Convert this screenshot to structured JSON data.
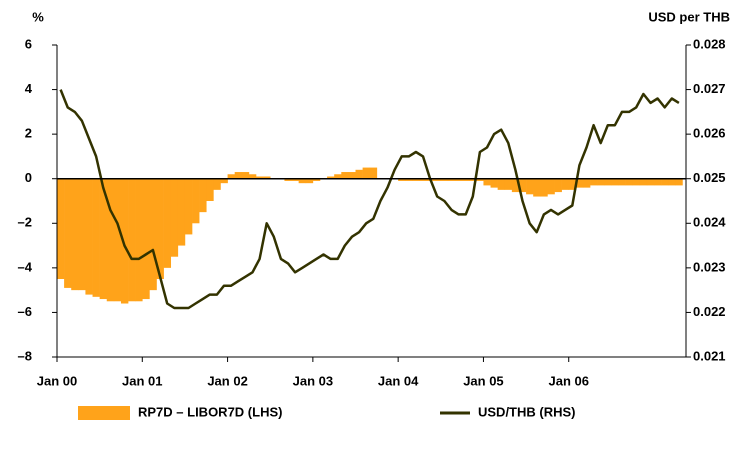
{
  "chart_data": {
    "type": "bar-line",
    "ylabel": "%",
    "y2label": "USD per THB",
    "categories": [
      "Jan 00",
      null,
      null,
      null,
      null,
      null,
      null,
      null,
      null,
      null,
      null,
      null,
      "Jan 01",
      null,
      null,
      null,
      null,
      null,
      null,
      null,
      null,
      null,
      null,
      null,
      "Jan 02",
      null,
      null,
      null,
      null,
      null,
      null,
      null,
      null,
      null,
      null,
      null,
      "Jan 03",
      null,
      null,
      null,
      null,
      null,
      null,
      null,
      null,
      null,
      null,
      null,
      "Jan 04",
      null,
      null,
      null,
      null,
      null,
      null,
      null,
      null,
      null,
      null,
      null,
      "Jan 05",
      null,
      null,
      null,
      null,
      null,
      null,
      null,
      null,
      null,
      null,
      null,
      "Jan 06",
      null,
      null,
      null,
      null,
      null,
      null,
      null,
      null,
      null,
      null,
      null,
      null,
      null,
      null,
      null
    ],
    "series": [
      {
        "name": "RP7D – LIBOR7D (LHS)",
        "color": "#ffa31a",
        "kind": "bar",
        "axis": "y",
        "values": [
          -4.5,
          -4.9,
          -5.0,
          -5.0,
          -5.2,
          -5.3,
          -5.4,
          -5.5,
          -5.5,
          -5.6,
          -5.5,
          -5.5,
          -5.4,
          -5.0,
          -4.5,
          -4.0,
          -3.5,
          -3.0,
          -2.5,
          -2.0,
          -1.5,
          -1.0,
          -0.5,
          -0.2,
          0.2,
          0.3,
          0.3,
          0.2,
          0.1,
          0.1,
          0.0,
          0.0,
          -0.1,
          -0.1,
          -0.2,
          -0.2,
          -0.1,
          0.0,
          0.1,
          0.2,
          0.3,
          0.3,
          0.4,
          0.5,
          0.5,
          0.0,
          0.0,
          0.0,
          -0.1,
          -0.1,
          -0.1,
          -0.1,
          -0.1,
          -0.1,
          -0.1,
          -0.1,
          -0.1,
          -0.1,
          -0.1,
          -0.1,
          -0.3,
          -0.4,
          -0.5,
          -0.5,
          -0.6,
          -0.6,
          -0.7,
          -0.8,
          -0.8,
          -0.7,
          -0.6,
          -0.5,
          -0.5,
          -0.4,
          -0.4,
          -0.3,
          -0.3,
          -0.3,
          -0.3,
          -0.3,
          -0.3,
          -0.3,
          -0.3,
          -0.3,
          -0.3,
          -0.3,
          -0.3,
          -0.3
        ]
      },
      {
        "name": "USD/THB (RHS)",
        "color": "#333300",
        "kind": "line",
        "axis": "y2",
        "values": [
          0.027,
          0.0266,
          0.0265,
          0.0263,
          0.0259,
          0.0255,
          0.0248,
          0.0243,
          0.024,
          0.0235,
          0.0232,
          0.0232,
          0.0233,
          0.0234,
          0.0228,
          0.0222,
          0.0221,
          0.0221,
          0.0221,
          0.0222,
          0.0223,
          0.0224,
          0.0224,
          0.0226,
          0.0226,
          0.0227,
          0.0228,
          0.0229,
          0.0232,
          0.024,
          0.0237,
          0.0232,
          0.0231,
          0.0229,
          0.023,
          0.0231,
          0.0232,
          0.0233,
          0.0232,
          0.0232,
          0.0235,
          0.0237,
          0.0238,
          0.024,
          0.0241,
          0.0245,
          0.0248,
          0.0252,
          0.0255,
          0.0255,
          0.0256,
          0.0255,
          0.025,
          0.0246,
          0.0245,
          0.0243,
          0.0242,
          0.0242,
          0.0246,
          0.0256,
          0.0257,
          0.026,
          0.0261,
          0.0258,
          0.0252,
          0.0245,
          0.024,
          0.0238,
          0.0242,
          0.0243,
          0.0242,
          0.0243,
          0.0244,
          0.0253,
          0.0257,
          0.0262,
          0.0258,
          0.0262,
          0.0262,
          0.0265,
          0.0265,
          0.0266,
          0.0269,
          0.0267,
          0.0268,
          0.0266,
          0.0268,
          0.0267
        ]
      }
    ],
    "ylim": [
      -8,
      6
    ],
    "yticks": [
      {
        "value": -8,
        "label": "–8"
      },
      {
        "value": -6,
        "label": "–6"
      },
      {
        "value": -4,
        "label": "–4"
      },
      {
        "value": -2,
        "label": "–2"
      },
      0,
      2,
      4,
      6
    ],
    "y2lim": [
      0.021,
      0.028
    ],
    "y2ticks": [
      0.021,
      0.022,
      0.023,
      0.024,
      0.025,
      0.026,
      0.027,
      0.028
    ]
  }
}
